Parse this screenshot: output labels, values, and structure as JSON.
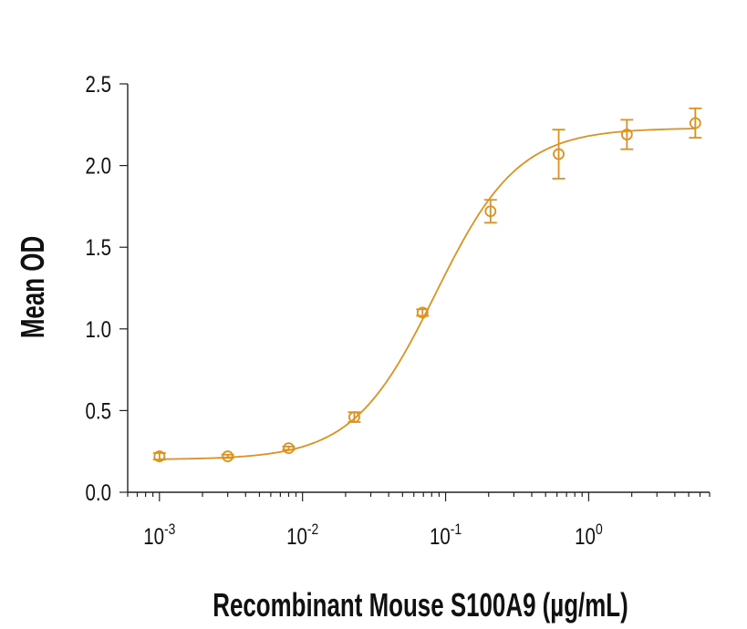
{
  "chart_data": {
    "type": "scatter",
    "title": "",
    "xlabel": "Recombinant Mouse S100A9 (µg/mL)",
    "ylabel": "Mean OD",
    "xscale": "log",
    "xlim": [
      0.0006,
      7
    ],
    "ylim": [
      0,
      2.5
    ],
    "grid": false,
    "y_ticks": [
      {
        "value": 0,
        "label": "0.0"
      },
      {
        "value": 0.5,
        "label": "0.5"
      },
      {
        "value": 1,
        "label": "1.0"
      },
      {
        "value": 1.5,
        "label": "1.5"
      },
      {
        "value": 2,
        "label": "2.0"
      },
      {
        "value": 2.5,
        "label": "2.5"
      }
    ],
    "x_ticks": [
      {
        "value": 0.001,
        "base": "10",
        "exp": "-3"
      },
      {
        "value": 0.01,
        "base": "10",
        "exp": "-2"
      },
      {
        "value": 0.1,
        "base": "10",
        "exp": "-1"
      },
      {
        "value": 1,
        "base": "10",
        "exp": "0"
      }
    ],
    "series": [
      {
        "color": "#E0901C",
        "marker": "open-circle",
        "points": [
          {
            "x": 0.001,
            "y": 0.22,
            "err": 0.02
          },
          {
            "x": 0.003,
            "y": 0.22,
            "err": 0.01
          },
          {
            "x": 0.008,
            "y": 0.27,
            "err": 0.01
          },
          {
            "x": 0.023,
            "y": 0.46,
            "err": 0.03
          },
          {
            "x": 0.069,
            "y": 1.1,
            "err": 0.02
          },
          {
            "x": 0.206,
            "y": 1.72,
            "err": 0.07
          },
          {
            "x": 0.617,
            "y": 2.07,
            "err": 0.15
          },
          {
            "x": 1.85,
            "y": 2.19,
            "err": 0.09
          },
          {
            "x": 5.56,
            "y": 2.26,
            "err": 0.09
          }
        ],
        "fit": {
          "bottom": 0.2,
          "top": 2.23,
          "ec50": 0.085,
          "hill": 1.5
        }
      }
    ]
  }
}
